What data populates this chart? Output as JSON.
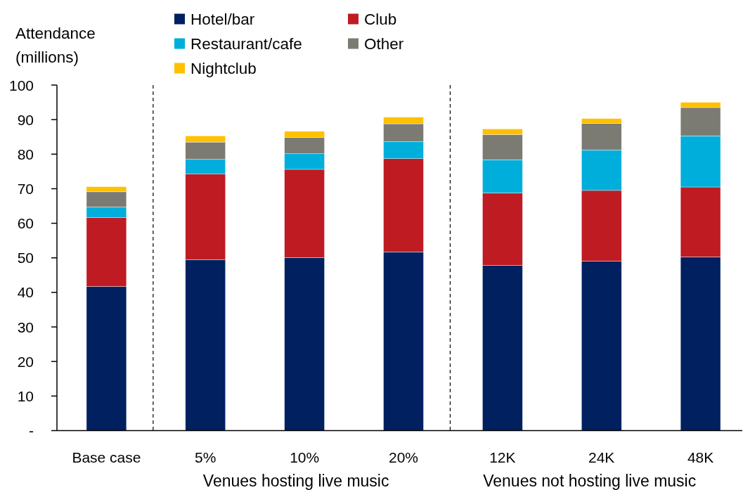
{
  "chart_data": {
    "type": "bar",
    "ylabel": "Attendance (millions)",
    "categories": [
      "Base case",
      "5%",
      "10%",
      "20%",
      "12K",
      "24K",
      "48K"
    ],
    "stacked": true,
    "series": [
      {
        "name": "Hotel/bar",
        "color": "#002060",
        "values": [
          41.7,
          49.5,
          50.1,
          51.7,
          47.8,
          49.1,
          50.3
        ]
      },
      {
        "name": "Club",
        "color": "#be1b22",
        "values": [
          19.9,
          24.7,
          25.5,
          27.0,
          21.0,
          20.4,
          20.2
        ]
      },
      {
        "name": "Restaurant/cafe",
        "color": "#00aedb",
        "values": [
          3.1,
          4.3,
          4.5,
          4.9,
          9.6,
          11.7,
          14.8
        ]
      },
      {
        "name": "Other",
        "color": "#7b7b74",
        "values": [
          4.4,
          5.0,
          4.8,
          5.2,
          7.3,
          7.7,
          8.2
        ]
      },
      {
        "name": "Nightclub",
        "color": "#ffc000",
        "values": [
          1.5,
          1.8,
          1.7,
          1.9,
          1.6,
          1.4,
          1.5
        ]
      }
    ],
    "ylim": [
      0,
      100
    ],
    "yticks": [
      {
        "value": 0,
        "label": "-"
      },
      10,
      20,
      30,
      40,
      50,
      60,
      70,
      80,
      90,
      100
    ],
    "legend": "top",
    "annotations": [
      "Venues hosting live music",
      "Venues not hosting live music"
    ]
  }
}
